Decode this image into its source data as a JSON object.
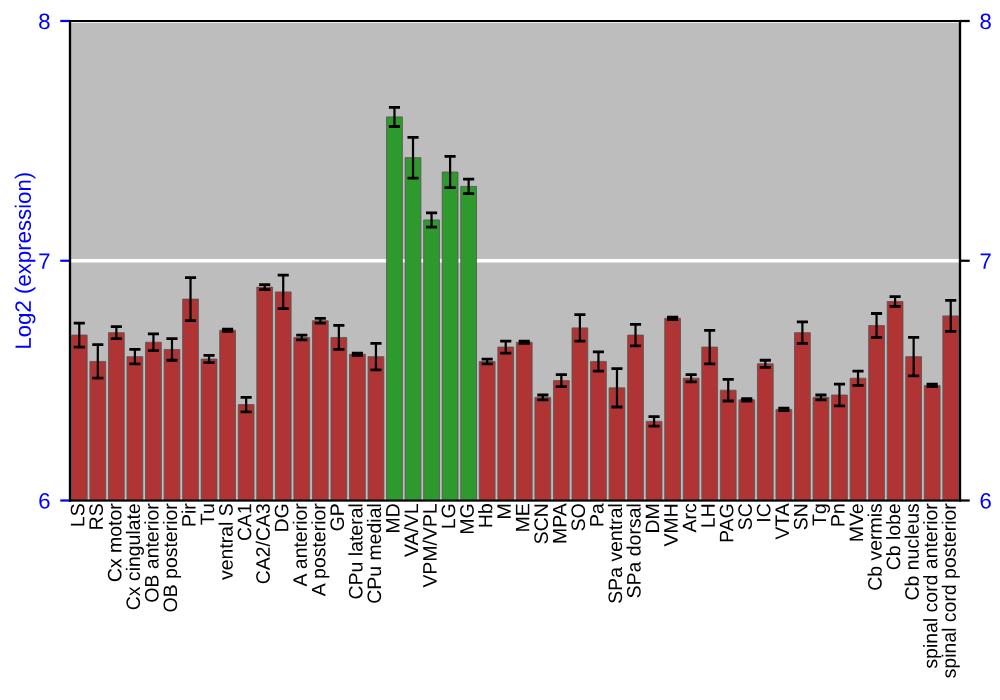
{
  "chart_data": {
    "type": "bar",
    "ylabel": "Log2 (expression)",
    "categories": [
      "LS",
      "RS",
      "Cx motor",
      "Cx cingulate",
      "OB anterior",
      "OB posterior",
      "Pir",
      "Tu",
      "ventral S",
      "CA1",
      "CA2/CA3",
      "DG",
      "A anterior",
      "A posterior",
      "GP",
      "CPu lateral",
      "CPu medial",
      "MD",
      "VA/VL",
      "VPM/VPL",
      "LG",
      "MG",
      "Hb",
      "M",
      "ME",
      "SCN",
      "MPA",
      "SO",
      "Pa",
      "SPa ventral",
      "SPa dorsal",
      "DM",
      "VMH",
      "Arc",
      "LH",
      "PAG",
      "SC",
      "IC",
      "VTA",
      "SN",
      "Tg",
      "Pn",
      "MVe",
      "Cb vermis",
      "Cb lobe",
      "Cb nucleus",
      "spinal cord anterior",
      "spinal cord posterior"
    ],
    "values": [
      6.69,
      6.58,
      6.7,
      6.6,
      6.66,
      6.63,
      6.84,
      6.59,
      6.71,
      6.4,
      6.89,
      6.87,
      6.68,
      6.75,
      6.68,
      6.61,
      6.6,
      7.6,
      7.43,
      7.17,
      7.37,
      7.31,
      6.58,
      6.64,
      6.66,
      6.43,
      6.5,
      6.72,
      6.58,
      6.47,
      6.69,
      6.33,
      6.76,
      6.51,
      6.64,
      6.46,
      6.42,
      6.57,
      6.38,
      6.7,
      6.43,
      6.44,
      6.51,
      6.73,
      6.83,
      6.6,
      6.48,
      6.77
    ],
    "errors": [
      0.05,
      0.07,
      0.025,
      0.03,
      0.035,
      0.045,
      0.09,
      0.015,
      0.005,
      0.03,
      0.01,
      0.07,
      0.01,
      0.01,
      0.05,
      0.005,
      0.055,
      0.04,
      0.085,
      0.03,
      0.065,
      0.03,
      0.01,
      0.025,
      0.005,
      0.01,
      0.025,
      0.055,
      0.04,
      0.08,
      0.045,
      0.02,
      0.005,
      0.015,
      0.07,
      0.045,
      0.005,
      0.015,
      0.005,
      0.045,
      0.01,
      0.045,
      0.03,
      0.05,
      0.02,
      0.08,
      0.005,
      0.065
    ],
    "colors": [
      "#b03434",
      "#b03434",
      "#b03434",
      "#b03434",
      "#b03434",
      "#b03434",
      "#b03434",
      "#b03434",
      "#b03434",
      "#b03434",
      "#b03434",
      "#b03434",
      "#b03434",
      "#b03434",
      "#b03434",
      "#b03434",
      "#b03434",
      "#2e9a2e",
      "#2e9a2e",
      "#2e9a2e",
      "#2e9a2e",
      "#2e9a2e",
      "#b03434",
      "#b03434",
      "#b03434",
      "#b03434",
      "#b03434",
      "#b03434",
      "#b03434",
      "#b03434",
      "#b03434",
      "#b03434",
      "#b03434",
      "#b03434",
      "#b03434",
      "#b03434",
      "#b03434",
      "#b03434",
      "#b03434",
      "#b03434",
      "#b03434",
      "#b03434",
      "#b03434",
      "#b03434",
      "#b03434",
      "#b03434",
      "#b03434",
      "#b03434"
    ],
    "ylim": [
      6,
      8
    ],
    "yticks": [
      6,
      7,
      8
    ],
    "y2lim": [
      6,
      8
    ],
    "y2ticks": [
      6,
      7,
      8
    ],
    "grid": "y"
  }
}
